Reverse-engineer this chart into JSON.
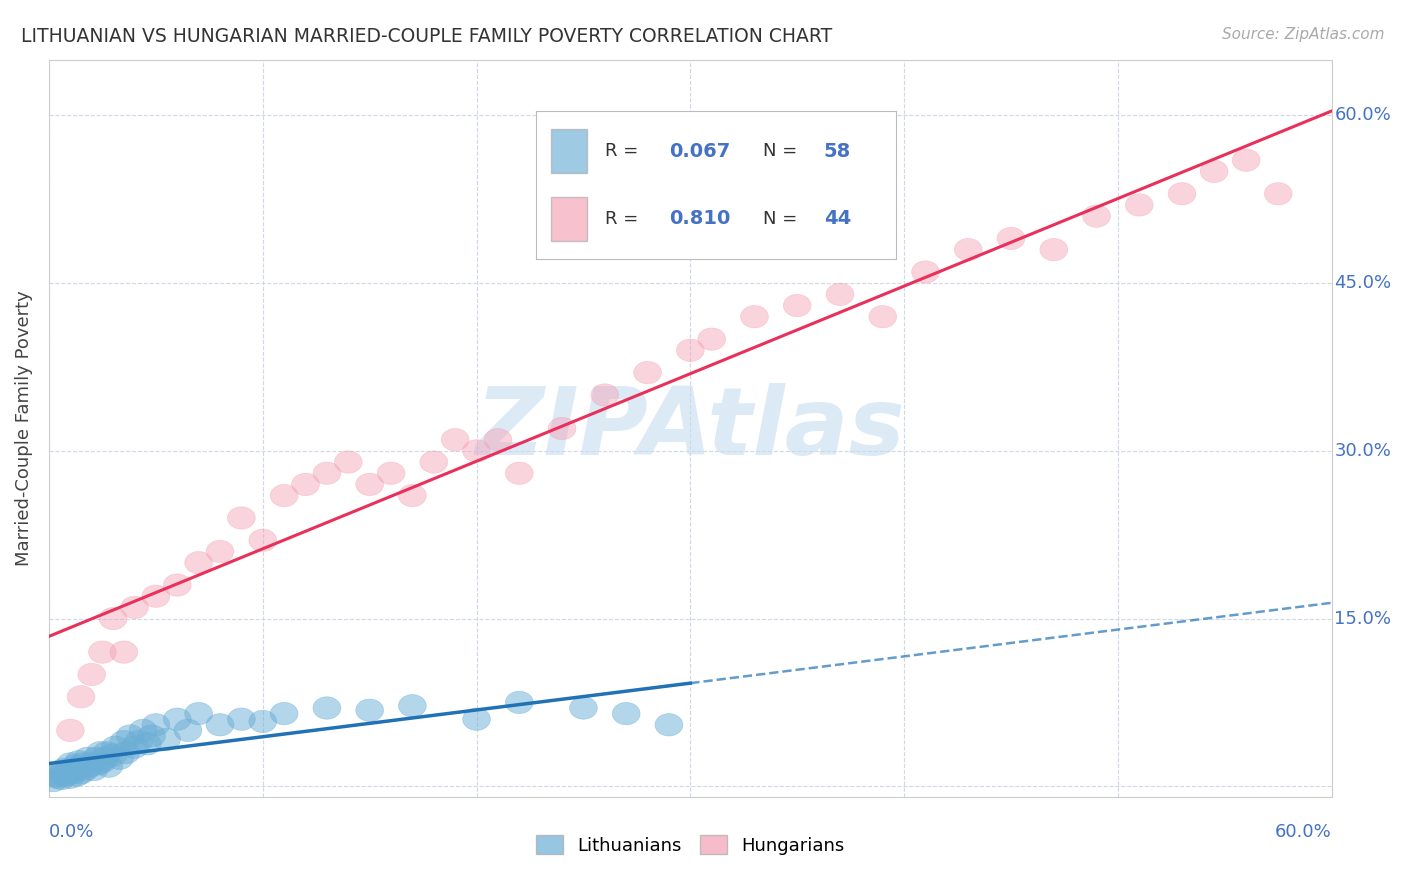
{
  "title": "LITHUANIAN VS HUNGARIAN MARRIED-COUPLE FAMILY POVERTY CORRELATION CHART",
  "source": "Source: ZipAtlas.com",
  "ylabel": "Married-Couple Family Poverty",
  "xlim": [
    0.0,
    0.6
  ],
  "ylim": [
    -0.01,
    0.65
  ],
  "xticks": [
    0.0,
    0.1,
    0.2,
    0.3,
    0.4,
    0.5,
    0.6
  ],
  "xticklabels_left": "0.0%",
  "xticklabels_right": "60.0%",
  "yticks": [
    0.0,
    0.15,
    0.3,
    0.45,
    0.6
  ],
  "yticklabels": [
    "",
    "15.0%",
    "30.0%",
    "45.0%",
    "60.0%"
  ],
  "legend_labels": [
    "Lithuanians",
    "Hungarians"
  ],
  "R_lit": 0.067,
  "N_lit": 58,
  "R_hun": 0.81,
  "N_hun": 44,
  "lit_color": "#6baed6",
  "hun_color": "#f4a0b5",
  "lit_line_color": "#2171b5",
  "hun_line_color": "#e8305a",
  "watermark": "ZIPAtlas",
  "watermark_color": "#c6dcf0",
  "grid_color": "#d0d8e8",
  "label_color": "#4472c4",
  "background_color": "#ffffff",
  "lit_x": [
    0.002,
    0.003,
    0.004,
    0.005,
    0.006,
    0.007,
    0.008,
    0.009,
    0.01,
    0.01,
    0.011,
    0.012,
    0.012,
    0.013,
    0.014,
    0.014,
    0.015,
    0.016,
    0.017,
    0.018,
    0.019,
    0.02,
    0.021,
    0.022,
    0.023,
    0.024,
    0.025,
    0.026,
    0.027,
    0.028,
    0.03,
    0.031,
    0.033,
    0.035,
    0.036,
    0.038,
    0.04,
    0.042,
    0.044,
    0.046,
    0.048,
    0.05,
    0.055,
    0.06,
    0.065,
    0.07,
    0.08,
    0.09,
    0.1,
    0.11,
    0.13,
    0.15,
    0.17,
    0.2,
    0.22,
    0.25,
    0.27,
    0.29
  ],
  "lit_y": [
    0.005,
    0.01,
    0.008,
    0.012,
    0.007,
    0.015,
    0.01,
    0.013,
    0.008,
    0.02,
    0.012,
    0.015,
    0.018,
    0.01,
    0.022,
    0.017,
    0.012,
    0.02,
    0.015,
    0.025,
    0.018,
    0.02,
    0.015,
    0.025,
    0.02,
    0.03,
    0.022,
    0.025,
    0.03,
    0.018,
    0.028,
    0.035,
    0.025,
    0.04,
    0.03,
    0.045,
    0.035,
    0.04,
    0.05,
    0.038,
    0.045,
    0.055,
    0.042,
    0.06,
    0.05,
    0.065,
    0.055,
    0.06,
    0.058,
    0.065,
    0.07,
    0.068,
    0.072,
    0.06,
    0.075,
    0.07,
    0.065,
    0.055
  ],
  "hun_x": [
    0.01,
    0.015,
    0.02,
    0.025,
    0.03,
    0.035,
    0.04,
    0.05,
    0.06,
    0.07,
    0.08,
    0.09,
    0.1,
    0.11,
    0.12,
    0.13,
    0.14,
    0.15,
    0.16,
    0.17,
    0.18,
    0.19,
    0.2,
    0.21,
    0.22,
    0.24,
    0.26,
    0.28,
    0.3,
    0.31,
    0.33,
    0.35,
    0.37,
    0.39,
    0.41,
    0.43,
    0.45,
    0.47,
    0.49,
    0.51,
    0.53,
    0.545,
    0.56,
    0.575
  ],
  "hun_y": [
    0.05,
    0.08,
    0.1,
    0.12,
    0.15,
    0.12,
    0.16,
    0.17,
    0.18,
    0.2,
    0.21,
    0.24,
    0.22,
    0.26,
    0.27,
    0.28,
    0.29,
    0.27,
    0.28,
    0.26,
    0.29,
    0.31,
    0.3,
    0.31,
    0.28,
    0.32,
    0.35,
    0.37,
    0.39,
    0.4,
    0.42,
    0.43,
    0.44,
    0.42,
    0.46,
    0.48,
    0.49,
    0.48,
    0.51,
    0.52,
    0.53,
    0.55,
    0.56,
    0.53
  ]
}
